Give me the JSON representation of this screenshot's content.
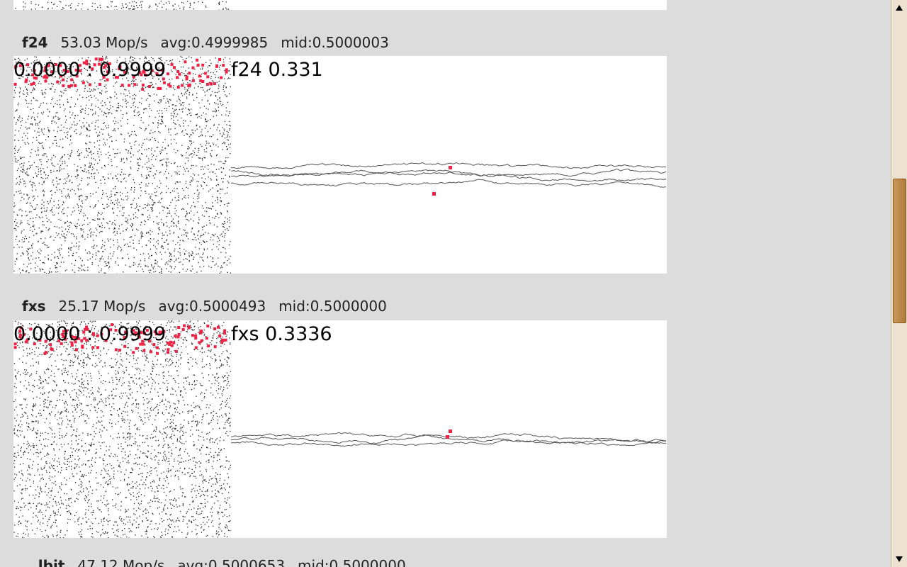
{
  "sections": [
    {
      "name": "f24",
      "rate": "53.03 Mop/s",
      "avg": "avg:0.4999985",
      "mid": "mid:0.5000003",
      "range_label": "0.0000 : 0.9999",
      "walk_label": "f24 0.331"
    },
    {
      "name": "fxs",
      "rate": "25.17 Mop/s",
      "avg": "avg:0.5000493",
      "mid": "mid:0.5000000",
      "range_label": "0.0000 : 0.9999",
      "walk_label": "fxs 0.3336"
    }
  ],
  "next_section": {
    "name": "...lbit",
    "rate": "47.12 Mop/s",
    "avg": "avg:0.5000653",
    "mid": "mid:0.5000000"
  },
  "colors": {
    "background": "#dcdcdc",
    "panel": "#ffffff",
    "dots": "#222222",
    "highlight": "#ee2244",
    "walk_line": "#555555"
  },
  "scrollbar": {
    "up_icon": "triangle-up-icon",
    "down_icon": "triangle-down-icon"
  }
}
